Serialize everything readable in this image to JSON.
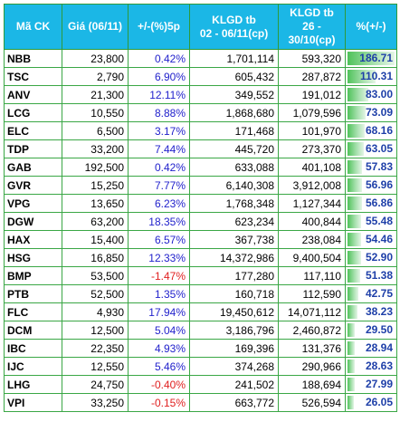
{
  "headers": {
    "code": "Mã CK",
    "price": "Giá (06/11)",
    "change": "+/-(%)5p",
    "vol1_line1": "KLGD tb",
    "vol1_line2": "02 - 06/11(cp)",
    "vol2_line1": "KLGD tb",
    "vol2_line2": "26 - 30/10(cp)",
    "ratio": "%(+/-)"
  },
  "colors": {
    "header_bg": "#1bb7e6",
    "grid": "#3aa745",
    "positive": "#2222cc",
    "negative": "#e02020",
    "bar": "#4fc25a"
  },
  "rows": [
    {
      "code": "NBB",
      "price": "23,800",
      "change": "0.42%",
      "dir": "pos",
      "vol1": "1,701,114",
      "vol2": "593,320",
      "ratio": "186.71",
      "ratio_value": 186.71
    },
    {
      "code": "TSC",
      "price": "2,790",
      "change": "6.90%",
      "dir": "pos",
      "vol1": "605,432",
      "vol2": "287,872",
      "ratio": "110.31",
      "ratio_value": 110.31
    },
    {
      "code": "ANV",
      "price": "21,300",
      "change": "12.11%",
      "dir": "pos",
      "vol1": "349,552",
      "vol2": "191,012",
      "ratio": "83.00",
      "ratio_value": 83.0
    },
    {
      "code": "LCG",
      "price": "10,550",
      "change": "8.88%",
      "dir": "pos",
      "vol1": "1,868,680",
      "vol2": "1,079,596",
      "ratio": "73.09",
      "ratio_value": 73.09
    },
    {
      "code": "ELC",
      "price": "6,500",
      "change": "3.17%",
      "dir": "pos",
      "vol1": "171,468",
      "vol2": "101,970",
      "ratio": "68.16",
      "ratio_value": 68.16
    },
    {
      "code": "TDP",
      "price": "33,200",
      "change": "7.44%",
      "dir": "pos",
      "vol1": "445,720",
      "vol2": "273,370",
      "ratio": "63.05",
      "ratio_value": 63.05
    },
    {
      "code": "GAB",
      "price": "192,500",
      "change": "0.42%",
      "dir": "pos",
      "vol1": "633,088",
      "vol2": "401,108",
      "ratio": "57.83",
      "ratio_value": 57.83
    },
    {
      "code": "GVR",
      "price": "15,250",
      "change": "7.77%",
      "dir": "pos",
      "vol1": "6,140,308",
      "vol2": "3,912,008",
      "ratio": "56.96",
      "ratio_value": 56.96
    },
    {
      "code": "VPG",
      "price": "13,650",
      "change": "6.23%",
      "dir": "pos",
      "vol1": "1,768,348",
      "vol2": "1,127,344",
      "ratio": "56.86",
      "ratio_value": 56.86
    },
    {
      "code": "DGW",
      "price": "63,200",
      "change": "18.35%",
      "dir": "pos",
      "vol1": "623,234",
      "vol2": "400,844",
      "ratio": "55.48",
      "ratio_value": 55.48
    },
    {
      "code": "HAX",
      "price": "15,400",
      "change": "6.57%",
      "dir": "pos",
      "vol1": "367,738",
      "vol2": "238,084",
      "ratio": "54.46",
      "ratio_value": 54.46
    },
    {
      "code": "HSG",
      "price": "16,850",
      "change": "12.33%",
      "dir": "pos",
      "vol1": "14,372,986",
      "vol2": "9,400,504",
      "ratio": "52.90",
      "ratio_value": 52.9
    },
    {
      "code": "BMP",
      "price": "53,500",
      "change": "-1.47%",
      "dir": "neg",
      "vol1": "177,280",
      "vol2": "117,110",
      "ratio": "51.38",
      "ratio_value": 51.38
    },
    {
      "code": "PTB",
      "price": "52,500",
      "change": "1.35%",
      "dir": "pos",
      "vol1": "160,718",
      "vol2": "112,590",
      "ratio": "42.75",
      "ratio_value": 42.75
    },
    {
      "code": "FLC",
      "price": "4,930",
      "change": "17.94%",
      "dir": "pos",
      "vol1": "19,450,612",
      "vol2": "14,071,112",
      "ratio": "38.23",
      "ratio_value": 38.23
    },
    {
      "code": "DCM",
      "price": "12,500",
      "change": "5.04%",
      "dir": "pos",
      "vol1": "3,186,796",
      "vol2": "2,460,872",
      "ratio": "29.50",
      "ratio_value": 29.5
    },
    {
      "code": "IBC",
      "price": "22,350",
      "change": "4.93%",
      "dir": "pos",
      "vol1": "169,396",
      "vol2": "131,376",
      "ratio": "28.94",
      "ratio_value": 28.94
    },
    {
      "code": "IJC",
      "price": "12,550",
      "change": "5.46%",
      "dir": "pos",
      "vol1": "374,268",
      "vol2": "290,966",
      "ratio": "28.63",
      "ratio_value": 28.63
    },
    {
      "code": "LHG",
      "price": "24,750",
      "change": "-0.40%",
      "dir": "neg",
      "vol1": "241,502",
      "vol2": "188,694",
      "ratio": "27.99",
      "ratio_value": 27.99
    },
    {
      "code": "VPI",
      "price": "33,250",
      "change": "-0.15%",
      "dir": "neg",
      "vol1": "663,772",
      "vol2": "526,594",
      "ratio": "26.05",
      "ratio_value": 26.05
    }
  ]
}
